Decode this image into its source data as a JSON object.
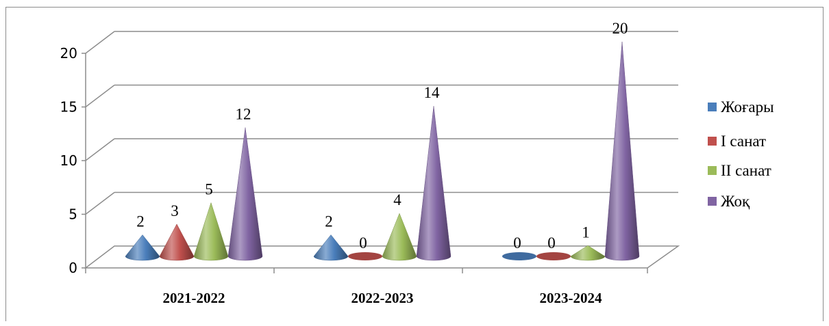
{
  "chart_data": {
    "type": "bar",
    "title": "",
    "xlabel": "",
    "ylabel": "",
    "categories": [
      "2021-2022",
      "2022-2023",
      "2023-2024"
    ],
    "series": [
      {
        "name": "Жоғары",
        "values": [
          2,
          2,
          0
        ]
      },
      {
        "name": "I санат",
        "values": [
          3,
          0,
          0
        ]
      },
      {
        "name": "II санат",
        "values": [
          5,
          4,
          1
        ]
      },
      {
        "name": "Жоқ",
        "values": [
          12,
          14,
          20
        ]
      }
    ],
    "ylim": [
      0,
      20
    ],
    "yticks": [
      "0",
      "5",
      "10",
      "15",
      "20"
    ],
    "grid": true,
    "legend": "right",
    "shape": "cone",
    "colors": [
      "#4a7ebb",
      "#c0504d",
      "#9bbb59",
      "#8064a2"
    ]
  }
}
